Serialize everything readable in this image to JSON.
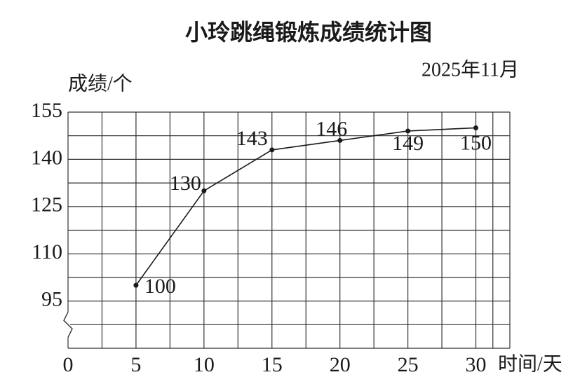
{
  "chart_data": {
    "type": "line",
    "title": "小玲跳绳锻炼成绩统计图",
    "subtitle": "2025年11月",
    "y_label": "成绩/个",
    "x_label": "时间/天",
    "x": [
      5,
      10,
      15,
      20,
      25,
      30
    ],
    "series": [
      {
        "color": "#1a1a1a",
        "values": [
          100,
          130,
          143,
          146,
          149,
          150
        ]
      }
    ],
    "xlim": [
      0,
      32.5
    ],
    "xticks": [
      0,
      5,
      10,
      15,
      20,
      25,
      30
    ],
    "ylim": [
      80,
      155
    ],
    "yticks": [
      95,
      110,
      125,
      140,
      155
    ],
    "grid": true,
    "y_axis_break": true
  }
}
